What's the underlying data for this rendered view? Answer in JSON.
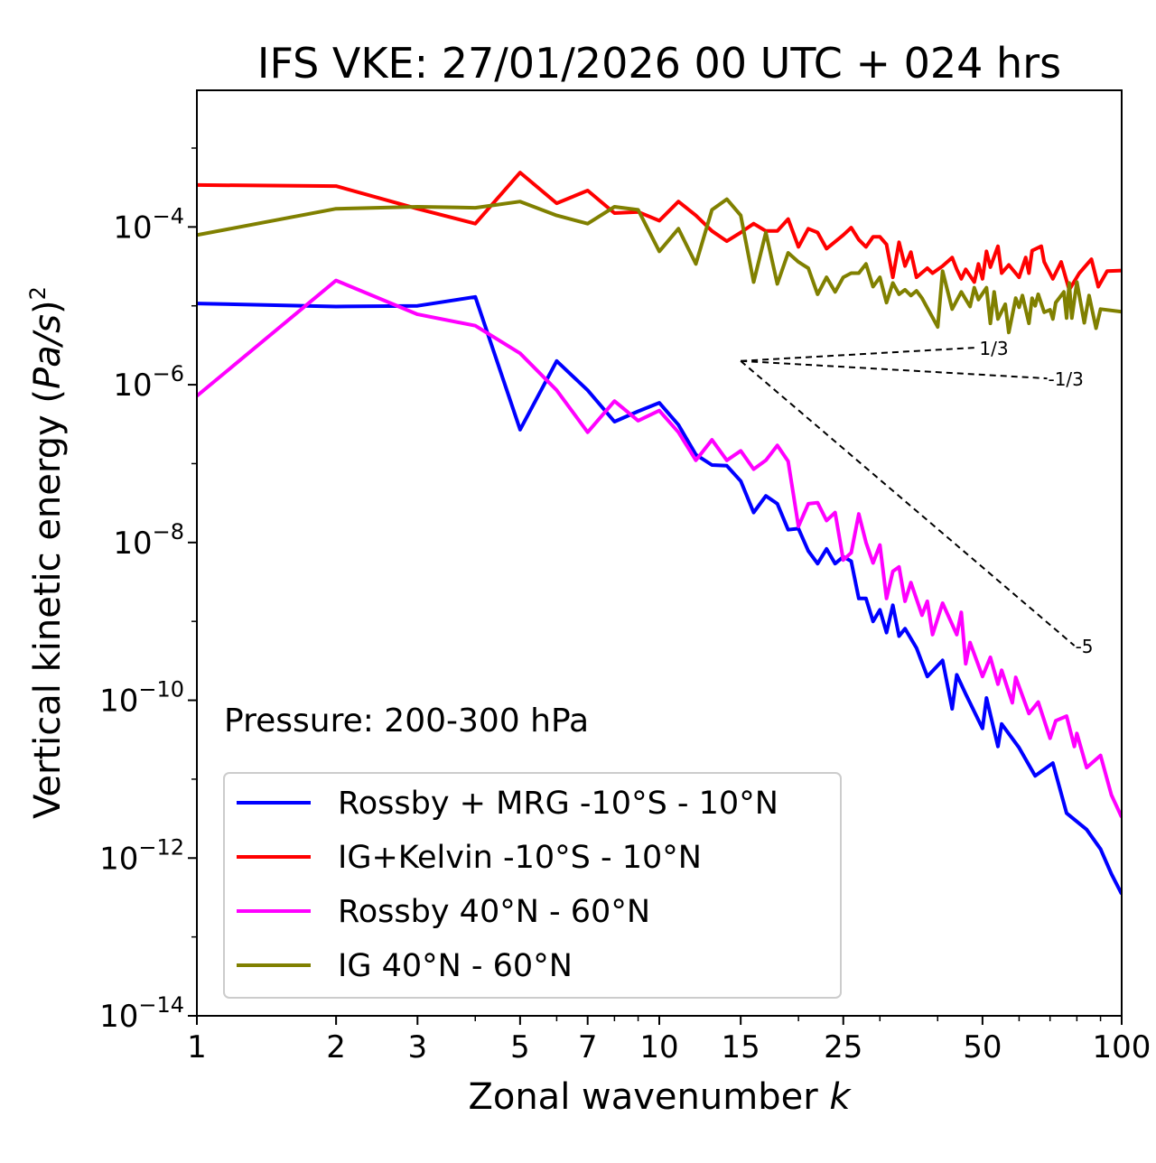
{
  "chart_data": {
    "type": "line",
    "title": "IFS VKE: 27/01/2026 00 UTC + 024 hrs",
    "xlabel_text": "Zonal wavenumber ",
    "xlabel_var": "k",
    "ylabel_text": "Vertical kinetic energy (",
    "ylabel_var": "Pa/s",
    "ylabel_close": ")",
    "ylabel_exp": "2",
    "xscale": "log",
    "yscale": "log",
    "xlim": [
      1,
      100
    ],
    "ylim": [
      1e-14,
      0.0054
    ],
    "xticks": [
      {
        "value": 1,
        "label": "1"
      },
      {
        "value": 2,
        "label": "2"
      },
      {
        "value": 3,
        "label": "3"
      },
      {
        "value": 5,
        "label": "5"
      },
      {
        "value": 7,
        "label": "7"
      },
      {
        "value": 10,
        "label": "10"
      },
      {
        "value": 15,
        "label": "15"
      },
      {
        "value": 25,
        "label": "25"
      },
      {
        "value": 50,
        "label": "50"
      },
      {
        "value": 100,
        "label": "100"
      }
    ],
    "xminor": [
      4,
      6,
      8,
      9,
      20,
      30,
      40,
      60,
      70,
      80,
      90
    ],
    "yticks": [
      {
        "value": 0.0001,
        "base": "10",
        "exp": "−4"
      },
      {
        "value": 1e-06,
        "base": "10",
        "exp": "−6"
      },
      {
        "value": 1e-08,
        "base": "10",
        "exp": "−8"
      },
      {
        "value": 1e-10,
        "base": "10",
        "exp": "−10"
      },
      {
        "value": 1e-12,
        "base": "10",
        "exp": "−12"
      },
      {
        "value": 1e-14,
        "base": "10",
        "exp": "−14"
      }
    ],
    "annotation": "Pressure: 200-300 hPa",
    "legend_position": "lower-left",
    "grid": false,
    "series": [
      {
        "name": "Rossby + MRG -10°S - 10°N",
        "color": "#0000ff",
        "x": [
          1,
          2,
          3,
          4,
          5,
          6,
          7,
          8,
          9,
          10,
          11,
          12,
          13,
          14,
          15,
          16,
          17,
          18,
          19,
          20,
          21,
          22,
          23,
          24,
          25,
          26,
          27,
          28,
          29,
          30,
          31,
          32,
          33,
          34,
          36,
          38,
          41,
          43,
          44,
          46,
          50,
          51,
          54,
          55,
          60,
          65,
          71,
          76,
          84,
          90,
          95,
          100
        ],
        "y": [
          1.07e-05,
          9.8e-06,
          1e-05,
          1.3e-05,
          2.7e-07,
          2e-06,
          8.5e-07,
          3.4e-07,
          4.6e-07,
          5.9e-07,
          3.1e-07,
          1.3e-07,
          9.6e-08,
          9.4e-08,
          6e-08,
          2.4e-08,
          3.9e-08,
          3.1e-08,
          1.45e-08,
          1.5e-08,
          7.8e-09,
          5.4e-09,
          8.3e-09,
          5.4e-09,
          6.6e-09,
          5.8e-09,
          1.95e-09,
          1.95e-09,
          1e-09,
          1.4e-09,
          7.2e-10,
          1.6e-09,
          6.5e-10,
          8.1e-10,
          4.6e-10,
          2e-10,
          3.2e-10,
          7.8e-11,
          2.1e-10,
          1.2e-10,
          4.4e-11,
          1.07e-10,
          2.6e-11,
          5e-11,
          2.5e-11,
          1.1e-11,
          1.6e-11,
          3.7e-12,
          2.3e-12,
          1.3e-12,
          6.3e-13,
          3.5e-13
        ]
      },
      {
        "name": "IG+Kelvin -10°S - 10°N",
        "color": "#ff0000",
        "x": [
          1,
          2,
          3,
          4,
          5,
          6,
          7,
          8,
          9,
          10,
          11,
          12,
          13,
          14,
          15,
          16,
          17,
          18,
          19,
          20,
          21,
          22,
          23,
          24,
          25,
          26,
          27,
          28,
          29,
          30,
          31,
          32,
          33,
          34,
          35,
          36,
          38,
          39,
          41,
          43,
          44,
          45,
          46,
          48,
          49,
          50,
          51,
          52,
          54,
          55,
          57,
          60,
          62,
          63,
          64,
          67,
          68,
          71,
          74,
          77,
          81,
          86,
          89,
          93,
          100
        ],
        "y": [
          0.00034,
          0.00033,
          0.00017,
          0.00011,
          0.00049,
          0.0002,
          0.00029,
          0.00015,
          0.000155,
          0.00012,
          0.00021,
          0.00014,
          8.9e-05,
          6.6e-05,
          8.5e-05,
          0.00011,
          8.9e-05,
          8.9e-05,
          0.000126,
          5.6e-05,
          9.5e-05,
          8.5e-05,
          5.3e-05,
          6.5e-05,
          7.9e-05,
          9.8e-05,
          6.9e-05,
          5.6e-05,
          7.5e-05,
          7.5e-05,
          6e-05,
          2.3e-05,
          6.4e-05,
          3.2e-05,
          4.8e-05,
          2.3e-05,
          3e-05,
          2.6e-05,
          3.2e-05,
          4.1e-05,
          2.9e-05,
          2.2e-05,
          2.9e-05,
          2e-05,
          3.4e-05,
          2.2e-05,
          4.9e-05,
          3.1e-05,
          5.7e-05,
          2.6e-05,
          3.3e-05,
          2.3e-05,
          4.1e-05,
          2.6e-05,
          5e-05,
          5.7e-05,
          3.6e-05,
          2.2e-05,
          3.6e-05,
          1.6e-05,
          2.6e-05,
          3.9e-05,
          1.75e-05,
          2.75e-05,
          2.8e-05
        ]
      },
      {
        "name": "Rossby 40°N - 60°N",
        "color": "#ff00ff",
        "x": [
          1,
          2,
          3,
          4,
          5,
          6,
          7,
          8,
          9,
          10,
          11,
          12,
          13,
          14,
          15,
          16,
          17,
          18,
          19,
          20,
          21,
          22,
          23,
          24,
          25,
          26,
          27,
          28,
          29,
          30,
          31,
          32,
          33,
          34,
          35,
          37,
          38,
          39,
          41,
          44,
          45,
          46,
          47,
          50,
          52,
          54,
          55,
          58,
          59,
          63,
          66,
          70,
          72,
          76,
          79,
          80,
          84,
          90,
          95,
          100
        ],
        "y": [
          7.2e-07,
          2.1e-05,
          7.8e-06,
          5.6e-06,
          2.5e-06,
          8.5e-07,
          2.5e-07,
          6.2e-07,
          3.5e-07,
          4.7e-07,
          2.5e-07,
          1.1e-07,
          2e-07,
          1.1e-07,
          1.45e-07,
          8.5e-08,
          1.1e-07,
          1.7e-07,
          1.07e-07,
          1.6e-08,
          3.1e-08,
          3.2e-08,
          1.9e-08,
          2.4e-08,
          6e-09,
          7.4e-09,
          2.3e-08,
          1e-08,
          5.5e-09,
          9.3e-09,
          1.95e-09,
          4.3e-09,
          4.9e-09,
          1.8e-09,
          3.1e-09,
          1.2e-09,
          1.8e-09,
          6.8e-10,
          1.7e-09,
          6.8e-10,
          1.3e-09,
          2.9e-10,
          5.4e-10,
          2e-10,
          3.5e-10,
          1.6e-10,
          2.4e-10,
          9.3e-11,
          1.95e-10,
          6.8e-11,
          9.5e-11,
          3.3e-11,
          5.5e-11,
          6.3e-11,
          2.6e-11,
          3.8e-11,
          1.4e-11,
          2e-11,
          6.3e-12,
          3.3e-12
        ]
      },
      {
        "name": "IG 40°N - 60°N",
        "color": "#808000",
        "x": [
          1,
          2,
          3,
          4,
          5,
          6,
          7,
          8,
          9,
          10,
          11,
          12,
          13,
          14,
          15,
          16,
          17,
          18,
          19,
          20,
          21,
          22,
          23,
          24,
          25,
          26,
          27,
          28,
          29,
          30,
          31,
          32,
          33,
          34,
          35,
          36,
          37,
          40,
          41,
          43,
          45,
          47,
          48,
          49,
          51,
          52,
          53,
          54,
          56,
          57,
          59,
          60,
          61,
          63,
          64,
          65,
          66,
          68,
          70,
          71,
          72,
          75,
          76,
          77,
          78,
          80,
          83,
          85,
          88,
          90,
          100
        ],
        "y": [
          7.9e-05,
          0.00017,
          0.00018,
          0.000175,
          0.00021,
          0.00014,
          0.00011,
          0.00018,
          0.000165,
          4.9e-05,
          9.5e-05,
          3.4e-05,
          0.000165,
          0.000225,
          0.00014,
          2e-05,
          8.5e-05,
          1.9e-05,
          4.7e-05,
          3.6e-05,
          3e-05,
          1.4e-05,
          2.3e-05,
          1.5e-05,
          2.3e-05,
          2.6e-05,
          2.6e-05,
          3.4e-05,
          1.75e-05,
          2.3e-05,
          1.1e-05,
          1.95e-05,
          1.4e-05,
          1.6e-05,
          1.35e-05,
          1.55e-05,
          1.25e-05,
          5.4e-06,
          2.75e-05,
          9.1e-06,
          1.5e-05,
          9.8e-06,
          1.7e-05,
          1.2e-05,
          1.7e-05,
          6e-06,
          1.5e-05,
          6.8e-06,
          1.05e-05,
          4.6e-06,
          1.25e-05,
          9.6e-06,
          1.35e-05,
          6e-06,
          1.25e-05,
          1e-05,
          1.4e-05,
          8.3e-06,
          8.9e-06,
          6.8e-06,
          1.1e-05,
          1.5e-05,
          7e-06,
          1.95e-05,
          7e-06,
          2e-05,
          6.1e-06,
          1.35e-05,
          5.2e-06,
          9.1e-06,
          8.4e-06
        ]
      }
    ],
    "reference_slopes": [
      {
        "label": "1/3",
        "slope": 0.3333,
        "x0": 15,
        "y0": 2e-06,
        "x1": 49
      },
      {
        "label": "-1/3",
        "slope": -0.3333,
        "x0": 15,
        "y0": 2e-06,
        "x1": 69
      },
      {
        "label": "-5",
        "slope": -5,
        "x0": 15,
        "y0": 2e-06,
        "x1": 79
      }
    ]
  }
}
